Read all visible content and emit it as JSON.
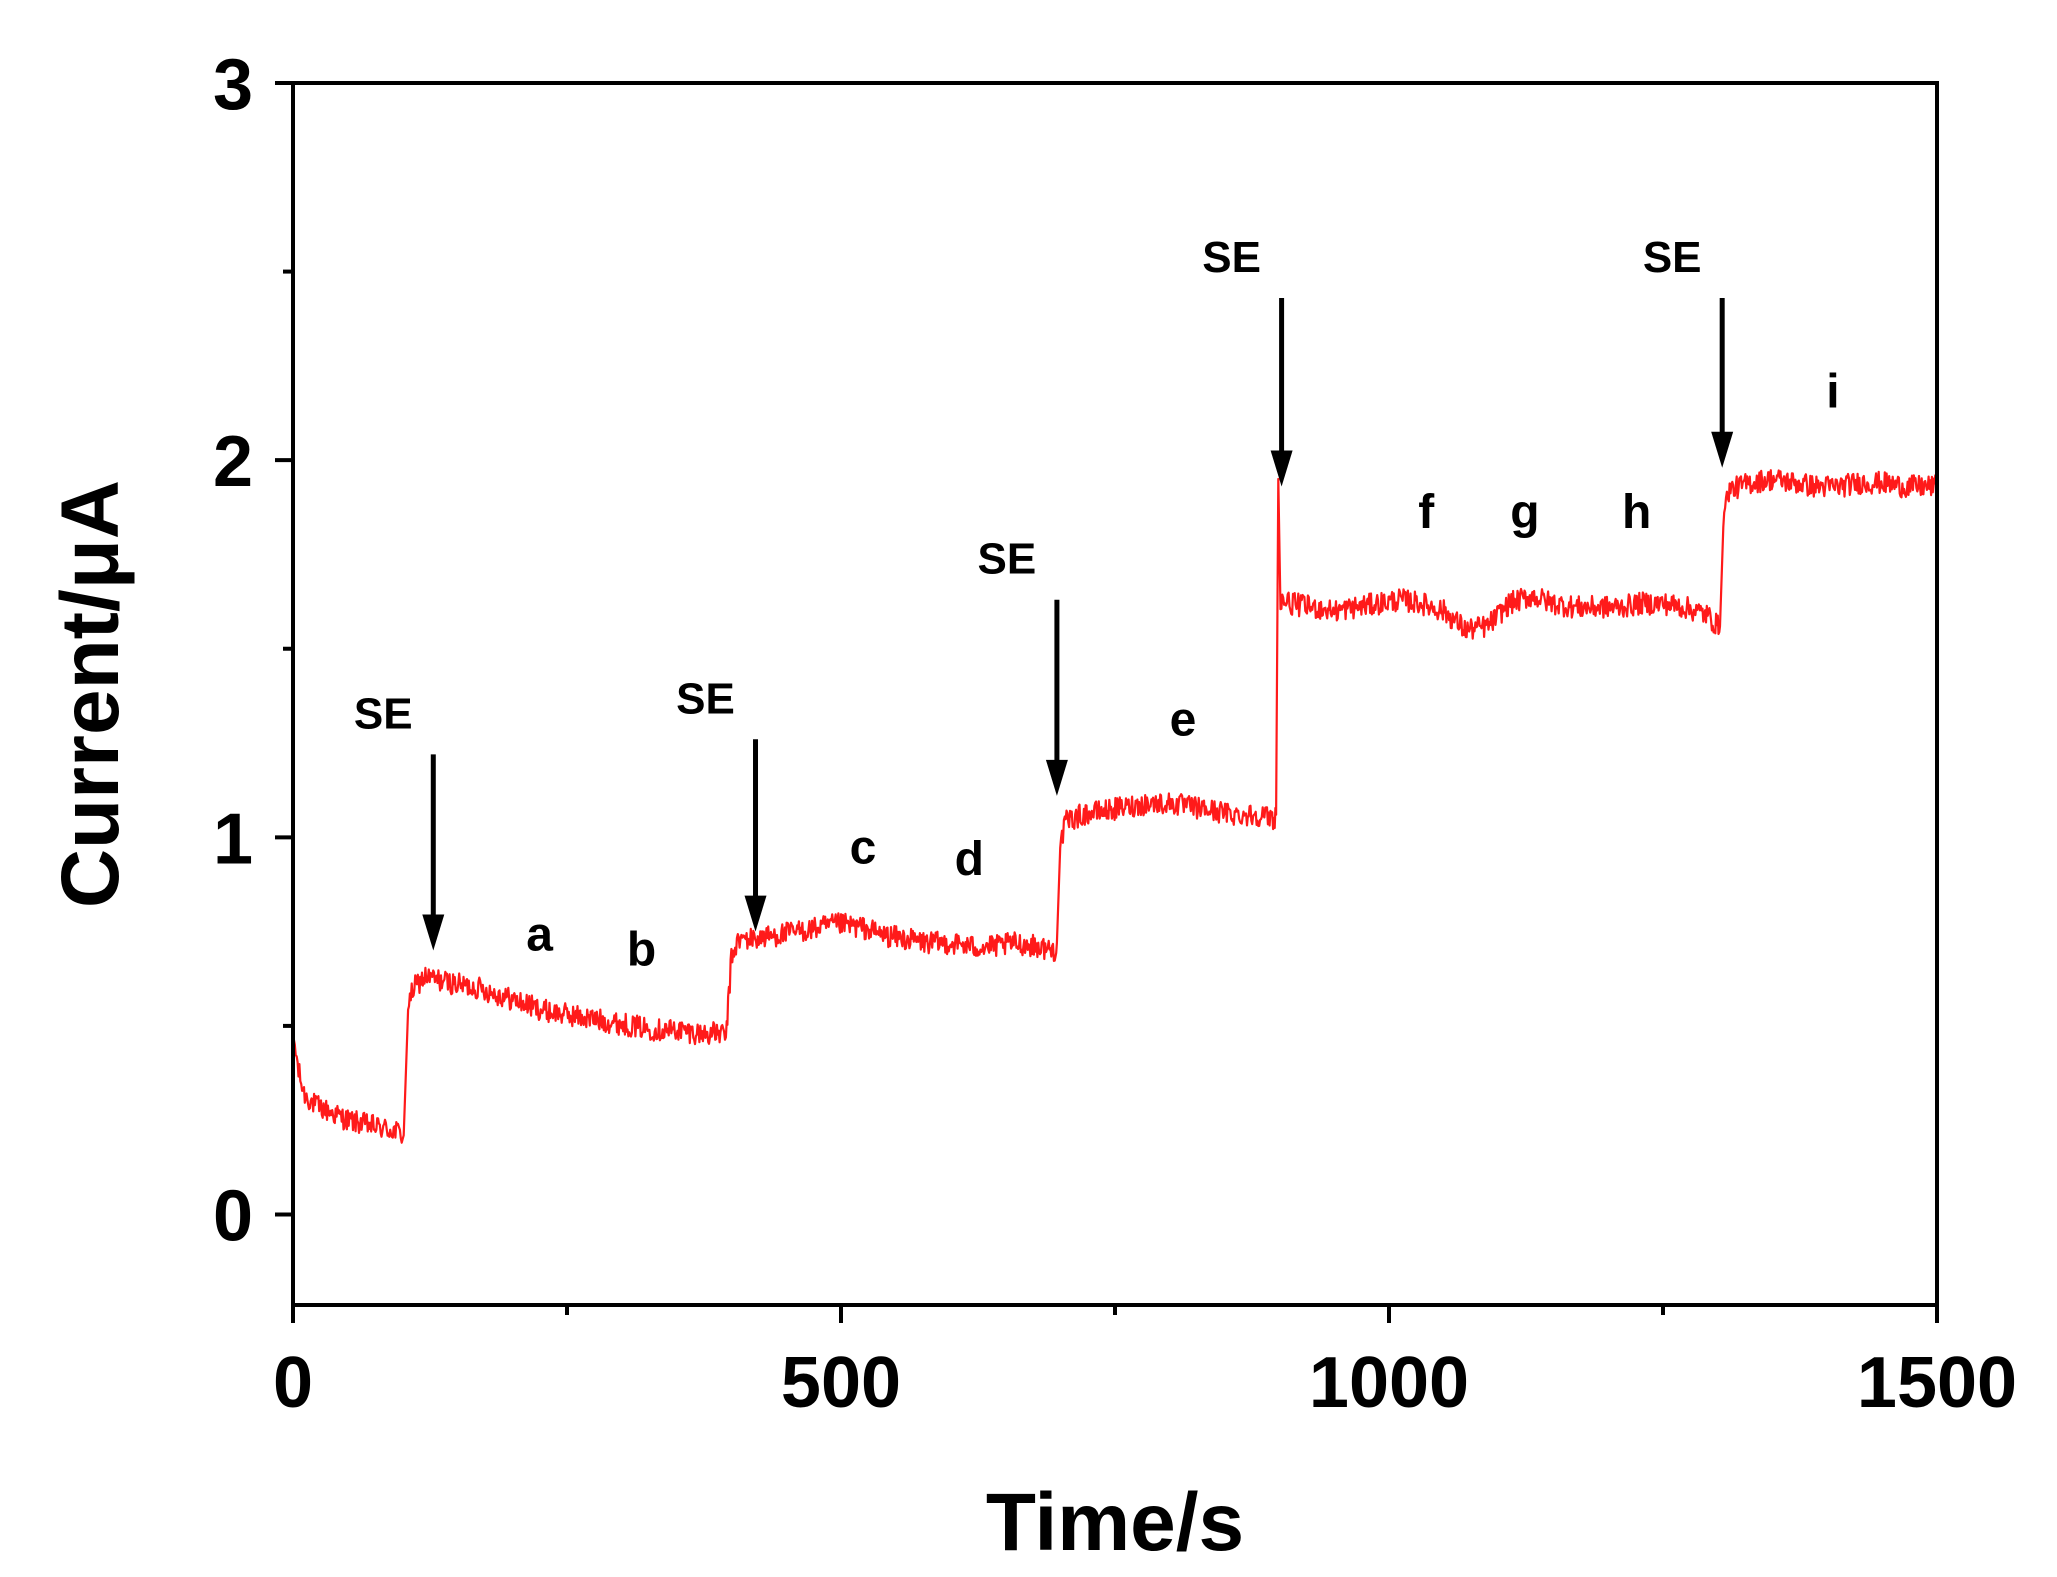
{
  "chart_data": {
    "type": "line",
    "title": "",
    "xlabel": "Time/s",
    "ylabel": "Current/μA",
    "xlim": [
      0,
      1500
    ],
    "ylim": [
      -0.24,
      3
    ],
    "x_ticks": [
      0,
      500,
      1000,
      1500
    ],
    "x_tick_labels": [
      "0",
      "500",
      "1000",
      "1500"
    ],
    "x_minor_ticks": [
      250,
      750,
      1250
    ],
    "y_ticks": [
      0,
      1,
      2,
      3
    ],
    "y_tick_labels": [
      "0",
      "1",
      "2",
      "3"
    ],
    "y_minor_ticks": [
      0.5,
      1.5,
      2.5
    ],
    "grid": false,
    "colors": {
      "line": "#ff1a1a",
      "axis": "#000000",
      "text": "#000000"
    },
    "series": [
      {
        "name": "current",
        "x": [
          0,
          5,
          10,
          20,
          35,
          50,
          65,
          80,
          95,
          100,
          101,
          105,
          110,
          120,
          135,
          150,
          170,
          190,
          210,
          230,
          250,
          270,
          290,
          310,
          330,
          350,
          370,
          390,
          395,
          397,
          400,
          405,
          410,
          420,
          440,
          460,
          480,
          500,
          520,
          540,
          560,
          580,
          600,
          620,
          640,
          660,
          680,
          695,
          697,
          700,
          705,
          720,
          740,
          760,
          780,
          800,
          820,
          840,
          860,
          880,
          895,
          897,
          899,
          901,
          910,
          930,
          950,
          970,
          990,
          1010,
          1030,
          1050,
          1070,
          1090,
          1110,
          1130,
          1150,
          1170,
          1190,
          1210,
          1230,
          1250,
          1270,
          1290,
          1300,
          1302,
          1305,
          1310,
          1330,
          1350,
          1370,
          1390,
          1410,
          1430,
          1450,
          1470,
          1490,
          1500
        ],
        "y": [
          0.48,
          0.38,
          0.32,
          0.29,
          0.27,
          0.25,
          0.24,
          0.23,
          0.22,
          0.21,
          0.21,
          0.55,
          0.6,
          0.63,
          0.62,
          0.61,
          0.6,
          0.58,
          0.56,
          0.54,
          0.53,
          0.52,
          0.51,
          0.5,
          0.49,
          0.49,
          0.48,
          0.48,
          0.47,
          0.55,
          0.68,
          0.72,
          0.73,
          0.73,
          0.74,
          0.75,
          0.76,
          0.77,
          0.76,
          0.74,
          0.73,
          0.72,
          0.72,
          0.71,
          0.71,
          0.72,
          0.71,
          0.7,
          0.72,
          0.98,
          1.04,
          1.06,
          1.07,
          1.08,
          1.09,
          1.09,
          1.08,
          1.07,
          1.06,
          1.06,
          1.05,
          1.06,
          1.95,
          1.63,
          1.62,
          1.61,
          1.6,
          1.61,
          1.62,
          1.63,
          1.62,
          1.6,
          1.55,
          1.56,
          1.62,
          1.64,
          1.62,
          1.61,
          1.61,
          1.61,
          1.62,
          1.62,
          1.61,
          1.59,
          1.56,
          1.56,
          1.85,
          1.92,
          1.94,
          1.95,
          1.94,
          1.93,
          1.93,
          1.94,
          1.94,
          1.93,
          1.93,
          1.93
        ]
      }
    ],
    "annotations": [
      {
        "text": "SE",
        "x": 128,
        "arrow_from": 1.22,
        "arrow_to": 0.7
      },
      {
        "text": "SE",
        "x": 422,
        "arrow_from": 1.26,
        "arrow_to": 0.75
      },
      {
        "text": "SE",
        "x": 697,
        "arrow_from": 1.63,
        "arrow_to": 1.11
      },
      {
        "text": "SE",
        "x": 902,
        "arrow_from": 2.43,
        "arrow_to": 1.93
      },
      {
        "text": "SE",
        "x": 1304,
        "arrow_from": 2.43,
        "arrow_to": 1.98
      }
    ],
    "point_labels": [
      {
        "text": "a",
        "x": 225,
        "y": 0.7
      },
      {
        "text": "b",
        "x": 318,
        "y": 0.66
      },
      {
        "text": "c",
        "x": 520,
        "y": 0.93
      },
      {
        "text": "d",
        "x": 617,
        "y": 0.9
      },
      {
        "text": "e",
        "x": 812,
        "y": 1.27
      },
      {
        "text": "f",
        "x": 1034,
        "y": 1.82
      },
      {
        "text": "g",
        "x": 1124,
        "y": 1.82
      },
      {
        "text": "h",
        "x": 1226,
        "y": 1.82
      },
      {
        "text": "i",
        "x": 1405,
        "y": 2.14
      }
    ]
  }
}
